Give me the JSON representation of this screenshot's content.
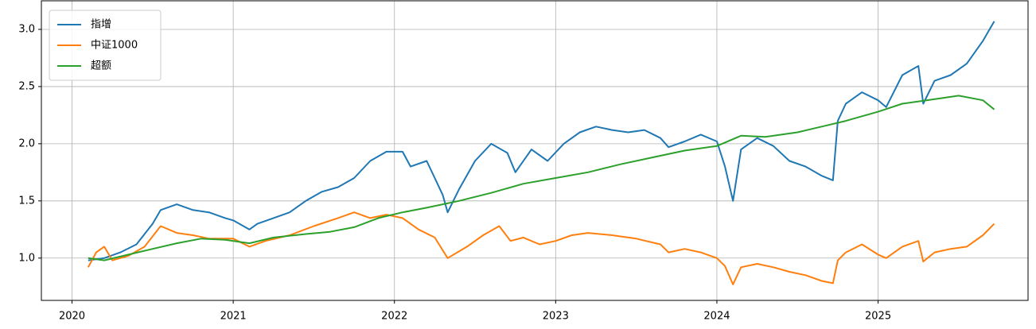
{
  "chart_data": {
    "type": "line",
    "xlim": [
      2019.81,
      2025.93
    ],
    "xticks": [
      2020,
      2021,
      2022,
      2023,
      2024,
      2025
    ],
    "ylim": [
      0.63,
      3.25
    ],
    "yticks": [
      1.0,
      1.5,
      2.0,
      2.5,
      3.0
    ],
    "grid": true,
    "legend": "upper left",
    "series": [
      {
        "name": "指增",
        "color": "#1f77b4",
        "x": [
          2020.1,
          2020.2,
          2020.3,
          2020.4,
          2020.5,
          2020.55,
          2020.65,
          2020.75,
          2020.85,
          2020.95,
          2021.0,
          2021.1,
          2021.15,
          2021.25,
          2021.35,
          2021.45,
          2021.55,
          2021.65,
          2021.75,
          2021.85,
          2021.95,
          2022.05,
          2022.1,
          2022.2,
          2022.25,
          2022.3,
          2022.33,
          2022.4,
          2022.5,
          2022.6,
          2022.7,
          2022.75,
          2022.85,
          2022.95,
          2023.05,
          2023.15,
          2023.25,
          2023.35,
          2023.45,
          2023.55,
          2023.65,
          2023.7,
          2023.8,
          2023.9,
          2024.0,
          2024.05,
          2024.1,
          2024.15,
          2024.25,
          2024.35,
          2024.45,
          2024.55,
          2024.65,
          2024.72,
          2024.75,
          2024.8,
          2024.9,
          2025.0,
          2025.05,
          2025.15,
          2025.25,
          2025.28,
          2025.35,
          2025.45,
          2025.55,
          2025.65,
          2025.72
        ],
        "values": [
          0.98,
          1.0,
          1.05,
          1.12,
          1.3,
          1.42,
          1.47,
          1.42,
          1.4,
          1.35,
          1.33,
          1.25,
          1.3,
          1.35,
          1.4,
          1.5,
          1.58,
          1.62,
          1.7,
          1.85,
          1.93,
          1.93,
          1.8,
          1.85,
          1.7,
          1.55,
          1.4,
          1.6,
          1.85,
          2.0,
          1.92,
          1.75,
          1.95,
          1.85,
          2.0,
          2.1,
          2.15,
          2.12,
          2.1,
          2.12,
          2.05,
          1.97,
          2.02,
          2.08,
          2.02,
          1.8,
          1.5,
          1.95,
          2.05,
          1.98,
          1.85,
          1.8,
          1.72,
          1.68,
          2.2,
          2.35,
          2.45,
          2.38,
          2.32,
          2.6,
          2.68,
          2.35,
          2.55,
          2.6,
          2.7,
          2.9,
          3.07
        ]
      },
      {
        "name": "中证1000",
        "color": "#ff7f0e",
        "x": [
          2020.1,
          2020.15,
          2020.2,
          2020.25,
          2020.35,
          2020.45,
          2020.55,
          2020.65,
          2020.75,
          2020.85,
          2021.0,
          2021.1,
          2021.2,
          2021.35,
          2021.5,
          2021.65,
          2021.75,
          2021.85,
          2021.95,
          2022.05,
          2022.15,
          2022.25,
          2022.33,
          2022.45,
          2022.55,
          2022.65,
          2022.72,
          2022.8,
          2022.9,
          2023.0,
          2023.1,
          2023.2,
          2023.35,
          2023.5,
          2023.65,
          2023.7,
          2023.8,
          2023.9,
          2024.0,
          2024.05,
          2024.1,
          2024.15,
          2024.25,
          2024.35,
          2024.45,
          2024.55,
          2024.65,
          2024.72,
          2024.75,
          2024.8,
          2024.9,
          2025.0,
          2025.05,
          2025.15,
          2025.25,
          2025.28,
          2025.35,
          2025.45,
          2025.55,
          2025.65,
          2025.72
        ],
        "values": [
          0.92,
          1.05,
          1.1,
          0.98,
          1.02,
          1.1,
          1.28,
          1.22,
          1.2,
          1.17,
          1.17,
          1.1,
          1.15,
          1.2,
          1.28,
          1.35,
          1.4,
          1.35,
          1.38,
          1.35,
          1.25,
          1.18,
          1.0,
          1.1,
          1.2,
          1.28,
          1.15,
          1.18,
          1.12,
          1.15,
          1.2,
          1.22,
          1.2,
          1.17,
          1.12,
          1.05,
          1.08,
          1.05,
          1.0,
          0.93,
          0.77,
          0.92,
          0.95,
          0.92,
          0.88,
          0.85,
          0.8,
          0.78,
          0.98,
          1.05,
          1.12,
          1.03,
          1.0,
          1.1,
          1.15,
          0.97,
          1.05,
          1.08,
          1.1,
          1.2,
          1.3
        ]
      },
      {
        "name": "超额",
        "color": "#2ca02c",
        "x": [
          2020.1,
          2020.2,
          2020.35,
          2020.5,
          2020.65,
          2020.8,
          2020.95,
          2021.1,
          2021.25,
          2021.45,
          2021.6,
          2021.75,
          2021.9,
          2022.05,
          2022.2,
          2022.4,
          2022.6,
          2022.8,
          2023.0,
          2023.2,
          2023.4,
          2023.6,
          2023.8,
          2024.0,
          2024.15,
          2024.3,
          2024.5,
          2024.65,
          2024.8,
          2025.0,
          2025.15,
          2025.3,
          2025.5,
          2025.65,
          2025.72
        ],
        "values": [
          1.0,
          0.98,
          1.03,
          1.08,
          1.13,
          1.17,
          1.16,
          1.13,
          1.18,
          1.21,
          1.23,
          1.27,
          1.35,
          1.4,
          1.44,
          1.5,
          1.57,
          1.65,
          1.7,
          1.75,
          1.82,
          1.88,
          1.94,
          1.98,
          2.07,
          2.06,
          2.1,
          2.15,
          2.2,
          2.28,
          2.35,
          2.38,
          2.42,
          2.38,
          2.3
        ]
      }
    ]
  }
}
